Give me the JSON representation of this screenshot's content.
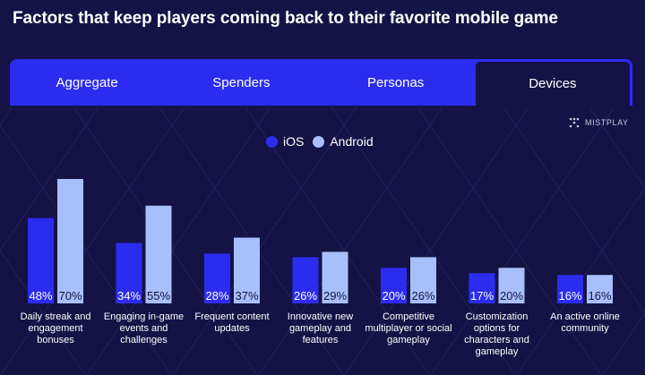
{
  "title": "Factors that keep players coming back to their favorite mobile game",
  "tabs": [
    {
      "label": "Aggregate",
      "active": false
    },
    {
      "label": "Spenders",
      "active": false
    },
    {
      "label": "Personas",
      "active": false
    },
    {
      "label": "Devices",
      "active": true
    }
  ],
  "brand": {
    "name": "MISTPLAY",
    "icon": "mistplay-logo-icon"
  },
  "colors": {
    "background": "#141346",
    "tab_bar": "#2c2cf0",
    "ios": "#2c2cf0",
    "android": "#a9bffb"
  },
  "chart_data": {
    "type": "bar",
    "title": "",
    "xlabel": "",
    "ylabel": "",
    "ylim": [
      0,
      70
    ],
    "legend_position": "top-center",
    "grid": false,
    "categories": [
      "Daily streak and engagement bonuses",
      "Engaging in-game events and challenges",
      "Frequent content updates",
      "Innovative new gameplay and features",
      "Competitive multiplayer or social gameplay",
      "Customization options for characters and gameplay",
      "An active online community"
    ],
    "series": [
      {
        "name": "iOS",
        "color": "#2c2cf0",
        "values": [
          48,
          34,
          28,
          26,
          20,
          17,
          16
        ],
        "labels": [
          "48%",
          "34%",
          "28%",
          "26%",
          "20%",
          "17%",
          "16%"
        ]
      },
      {
        "name": "Android",
        "color": "#a9bffb",
        "values": [
          70,
          55,
          37,
          29,
          26,
          20,
          16
        ],
        "labels": [
          "70%",
          "55%",
          "37%",
          "29%",
          "26%",
          "20%",
          "16%"
        ]
      }
    ]
  }
}
